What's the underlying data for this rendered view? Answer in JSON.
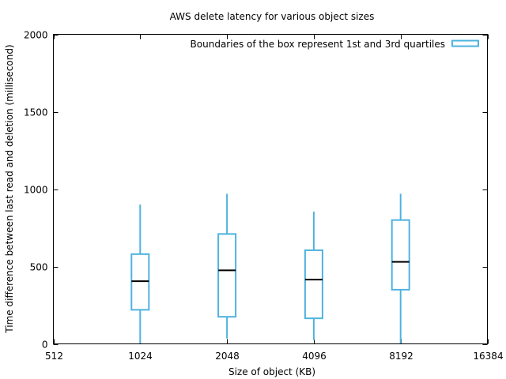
{
  "chart_data": {
    "type": "box",
    "title": "AWS delete latency for various object sizes",
    "xlabel": "Size of object (KB)",
    "ylabel": "Time difference between last read and deletion (millisecond)",
    "x_scale": "log2",
    "xlim": [
      512,
      16384
    ],
    "ylim": [
      0,
      2000
    ],
    "x_ticks": [
      512,
      1024,
      2048,
      4096,
      8192,
      16384
    ],
    "x_tick_labels": [
      "512",
      "1024",
      "2048",
      "4096",
      "8192",
      "16384"
    ],
    "y_ticks": [
      0,
      500,
      1000,
      1500,
      2000
    ],
    "y_tick_labels": [
      "0",
      "500",
      "1000",
      "1500",
      "2000"
    ],
    "legend": {
      "label": "Boundaries of the box represent 1st and 3rd quartiles",
      "position": "top-right"
    },
    "box_color": "#4eb3e0",
    "median_color": "#000000",
    "boxes": [
      {
        "x": 1024,
        "min": 0,
        "q1": 220,
        "median": 405,
        "q3": 580,
        "max": 900
      },
      {
        "x": 2048,
        "min": 35,
        "q1": 175,
        "median": 475,
        "q3": 710,
        "max": 970
      },
      {
        "x": 4096,
        "min": 25,
        "q1": 165,
        "median": 415,
        "q3": 605,
        "max": 855
      },
      {
        "x": 8192,
        "min": 0,
        "q1": 350,
        "median": 530,
        "q3": 800,
        "max": 970
      }
    ]
  }
}
